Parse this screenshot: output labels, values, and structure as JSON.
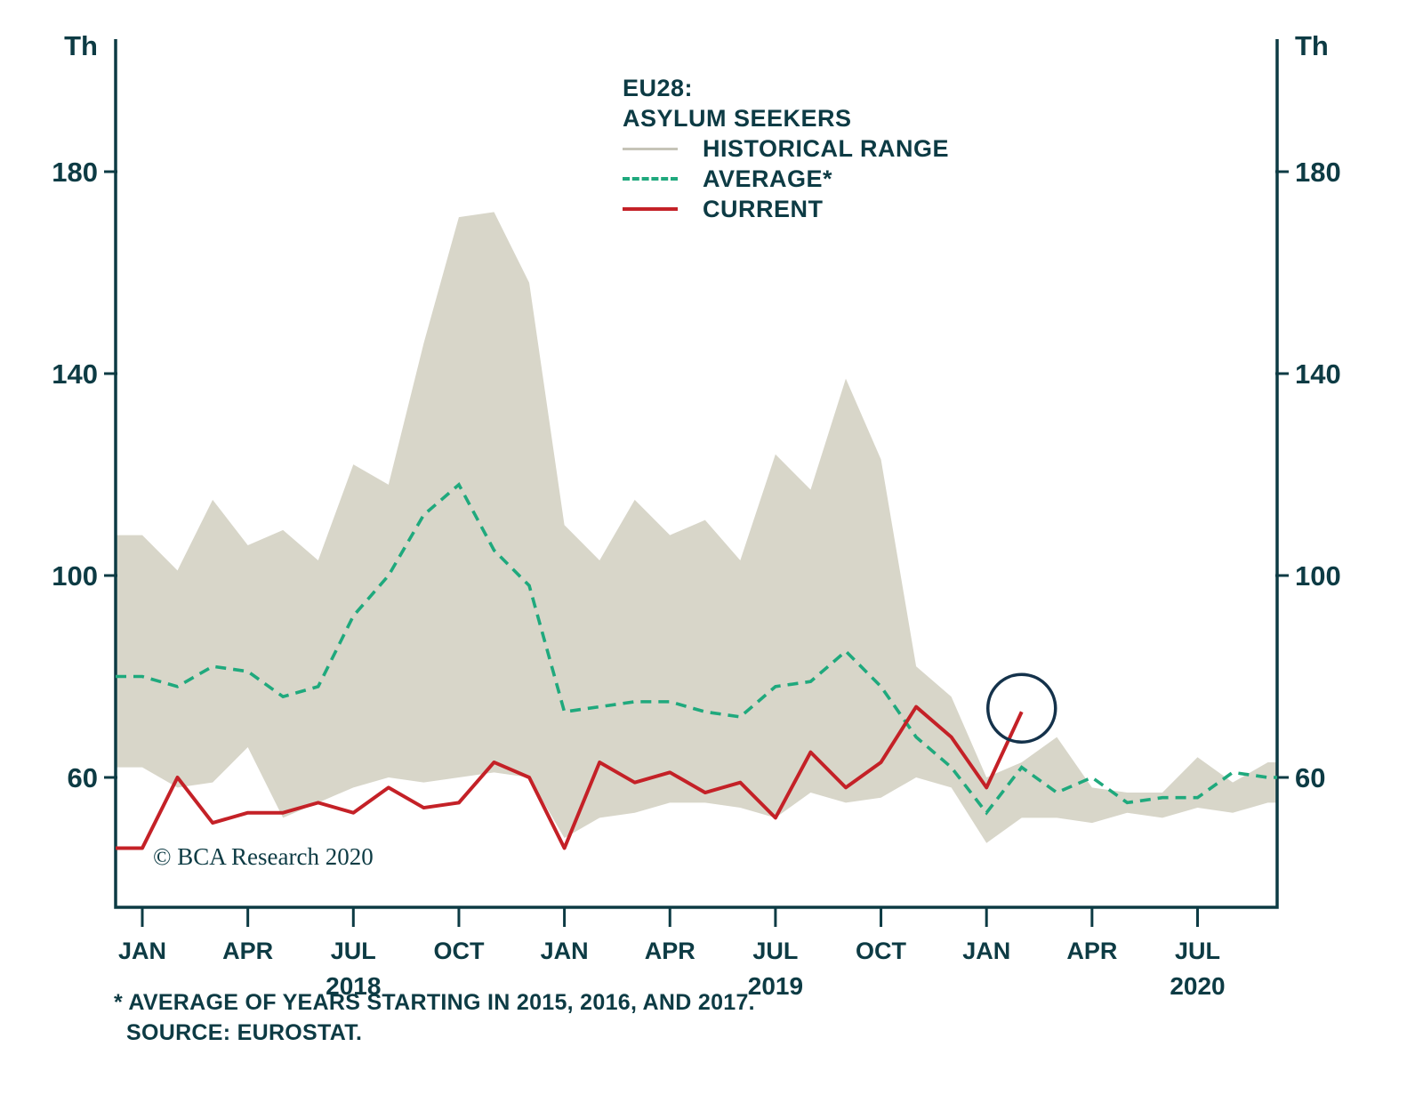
{
  "title": {
    "line1": "EU28:",
    "line2": "ASYLUM SEEKERS"
  },
  "legend": {
    "items": [
      {
        "label": "HISTORICAL RANGE",
        "type": "band"
      },
      {
        "label": "AVERAGE*",
        "type": "dashed"
      },
      {
        "label": "CURRENT",
        "type": "solid"
      }
    ]
  },
  "copyright": "© BCA Research 2020",
  "footnotes": {
    "line1": "* AVERAGE OF YEARS STARTING IN 2015, 2016, AND 2017.",
    "line2": "SOURCE: EUROSTAT."
  },
  "colors": {
    "text": "#0d3b44",
    "axis": "#0d3b44",
    "band": "#d8d6c9",
    "band_swatch": "#c6c4b8",
    "average": "#1fa97d",
    "current": "#c42127",
    "annotation": "#14324b"
  },
  "chart_data": {
    "type": "line",
    "title": "EU28: ASYLUM SEEKERS",
    "unit": "Th",
    "yticks": [
      60,
      100,
      140,
      180
    ],
    "ylim": [
      34,
      205
    ],
    "x": [
      "2018-01",
      "2018-02",
      "2018-03",
      "2018-04",
      "2018-05",
      "2018-06",
      "2018-07",
      "2018-08",
      "2018-09",
      "2018-10",
      "2018-11",
      "2018-12",
      "2019-01",
      "2019-02",
      "2019-03",
      "2019-04",
      "2019-05",
      "2019-06",
      "2019-07",
      "2019-08",
      "2019-09",
      "2019-10",
      "2019-11",
      "2019-12",
      "2020-01",
      "2020-02",
      "2020-03",
      "2020-04",
      "2020-05",
      "2020-06",
      "2020-07",
      "2020-08",
      "2020-09"
    ],
    "x_tick_labels": [
      {
        "index": 0,
        "label": "JAN"
      },
      {
        "index": 3,
        "label": "APR"
      },
      {
        "index": 6,
        "label": "JUL"
      },
      {
        "index": 9,
        "label": "OCT"
      },
      {
        "index": 12,
        "label": "JAN"
      },
      {
        "index": 15,
        "label": "APR"
      },
      {
        "index": 18,
        "label": "JUL"
      },
      {
        "index": 21,
        "label": "OCT"
      },
      {
        "index": 24,
        "label": "JAN"
      },
      {
        "index": 27,
        "label": "APR"
      },
      {
        "index": 30,
        "label": "JUL"
      }
    ],
    "year_labels": [
      {
        "index": 6,
        "label": "2018"
      },
      {
        "index": 18,
        "label": "2019"
      },
      {
        "index": 30,
        "label": "2020"
      }
    ],
    "series": [
      {
        "name": "HISTORICAL RANGE",
        "type": "band",
        "upper": [
          108,
          101,
          115,
          106,
          109,
          103,
          122,
          118,
          146,
          171,
          172,
          158,
          110,
          103,
          115,
          108,
          111,
          103,
          124,
          117,
          139,
          123,
          82,
          76,
          60,
          63,
          68,
          58,
          57,
          57,
          64,
          59,
          63
        ],
        "lower": [
          62,
          58,
          59,
          66,
          52,
          55,
          58,
          60,
          59,
          60,
          61,
          60,
          48,
          52,
          53,
          55,
          55,
          54,
          52,
          57,
          55,
          56,
          60,
          58,
          47,
          52,
          52,
          51,
          53,
          52,
          54,
          53,
          55
        ]
      },
      {
        "name": "AVERAGE*",
        "type": "line-dashed",
        "values": [
          80,
          78,
          82,
          81,
          76,
          78,
          92,
          100,
          112,
          118,
          105,
          98,
          73,
          74,
          75,
          75,
          73,
          72,
          78,
          79,
          85,
          78,
          68,
          62,
          53,
          62,
          57,
          60,
          55,
          56,
          56,
          61,
          60
        ]
      },
      {
        "name": "CURRENT",
        "type": "line",
        "values": [
          46,
          60,
          51,
          53,
          53,
          55,
          53,
          58,
          54,
          55,
          63,
          60,
          46,
          63,
          59,
          61,
          57,
          59,
          52,
          65,
          58,
          63,
          74,
          68,
          58,
          73
        ]
      }
    ],
    "annotation": {
      "type": "circle",
      "series": "CURRENT",
      "x": "2020-02",
      "value": 73
    }
  }
}
